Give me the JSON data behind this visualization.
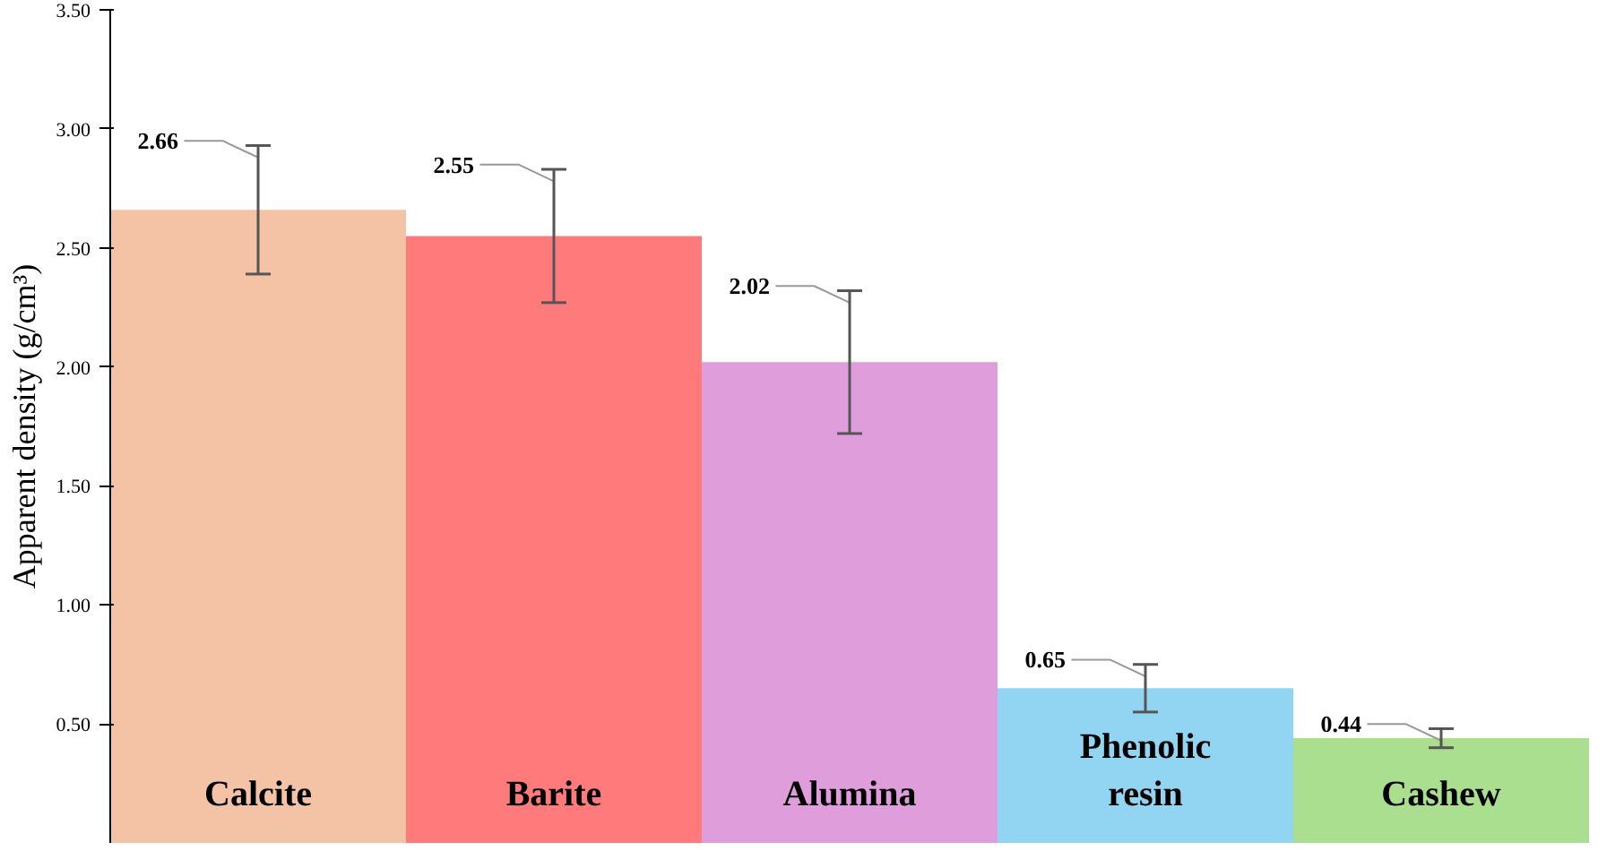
{
  "chart_data": {
    "type": "bar",
    "ylabel": "Apparent density (g/cm³)",
    "categories": [
      "Calcite",
      "Barite",
      "Alumina",
      "Phenolic resin",
      "Cashew"
    ],
    "values": [
      2.66,
      2.55,
      2.02,
      0.65,
      0.44
    ],
    "colors": [
      "#f4c3a6",
      "#fe7a7b",
      "#e09ddc",
      "#92d5f2",
      "#a9df8e"
    ],
    "errors": [
      0.27,
      0.28,
      0.3,
      0.1,
      0.04
    ],
    "data_labels": true,
    "grid": false,
    "ylim": [
      0,
      3.5
    ],
    "yticks": [
      {
        "value": 0.5,
        "label": "0.50"
      },
      {
        "value": 1,
        "label": "1.00"
      },
      {
        "value": 1.5,
        "label": "1.50"
      },
      {
        "value": 2,
        "label": "2.00"
      },
      {
        "value": 2.5,
        "label": "2.50"
      },
      {
        "value": 3,
        "label": "3.00"
      },
      {
        "value": 3.5,
        "label": "3.50"
      }
    ]
  }
}
